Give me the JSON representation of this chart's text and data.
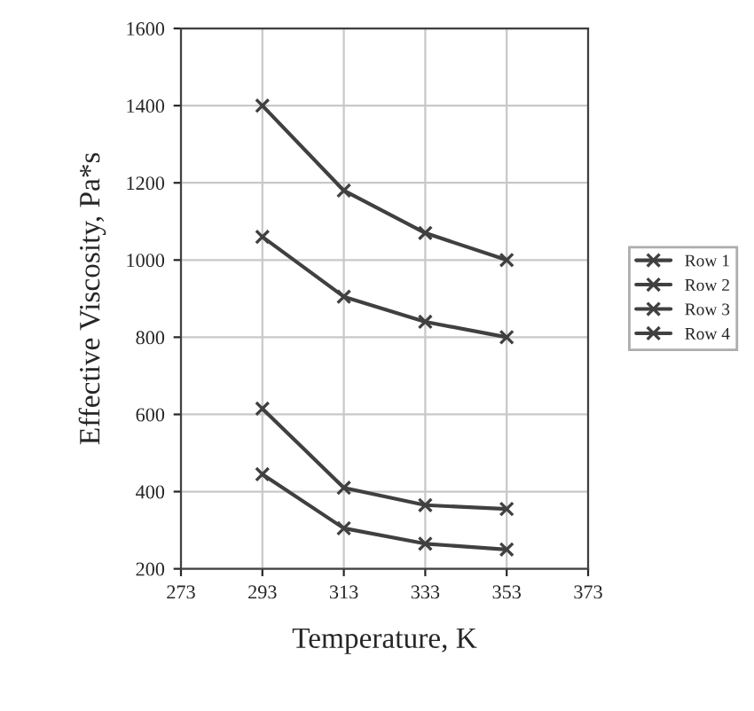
{
  "chart_data": {
    "type": "line",
    "xlabel": "Temperature, K",
    "ylabel": "Effective Viscosity, Pa*s",
    "x": [
      293,
      313,
      333,
      353
    ],
    "series": [
      {
        "name": "Row 1",
        "color": "#404040",
        "values": [
          1400,
          1180,
          1070,
          1000
        ]
      },
      {
        "name": "Row 2",
        "color": "#404040",
        "values": [
          1060,
          905,
          840,
          800
        ]
      },
      {
        "name": "Row 3",
        "color": "#404040",
        "values": [
          615,
          410,
          365,
          355
        ]
      },
      {
        "name": "Row 4",
        "color": "#404040",
        "values": [
          445,
          305,
          265,
          250
        ]
      }
    ],
    "xlim": [
      273,
      373
    ],
    "xticks": [
      273,
      293,
      313,
      333,
      353,
      373
    ],
    "ylim": [
      200,
      1600
    ],
    "yticks": [
      200,
      400,
      600,
      800,
      1000,
      1200,
      1400,
      1600
    ],
    "grid": true,
    "legend": "right",
    "marker": "cross",
    "line_style": "solid"
  }
}
